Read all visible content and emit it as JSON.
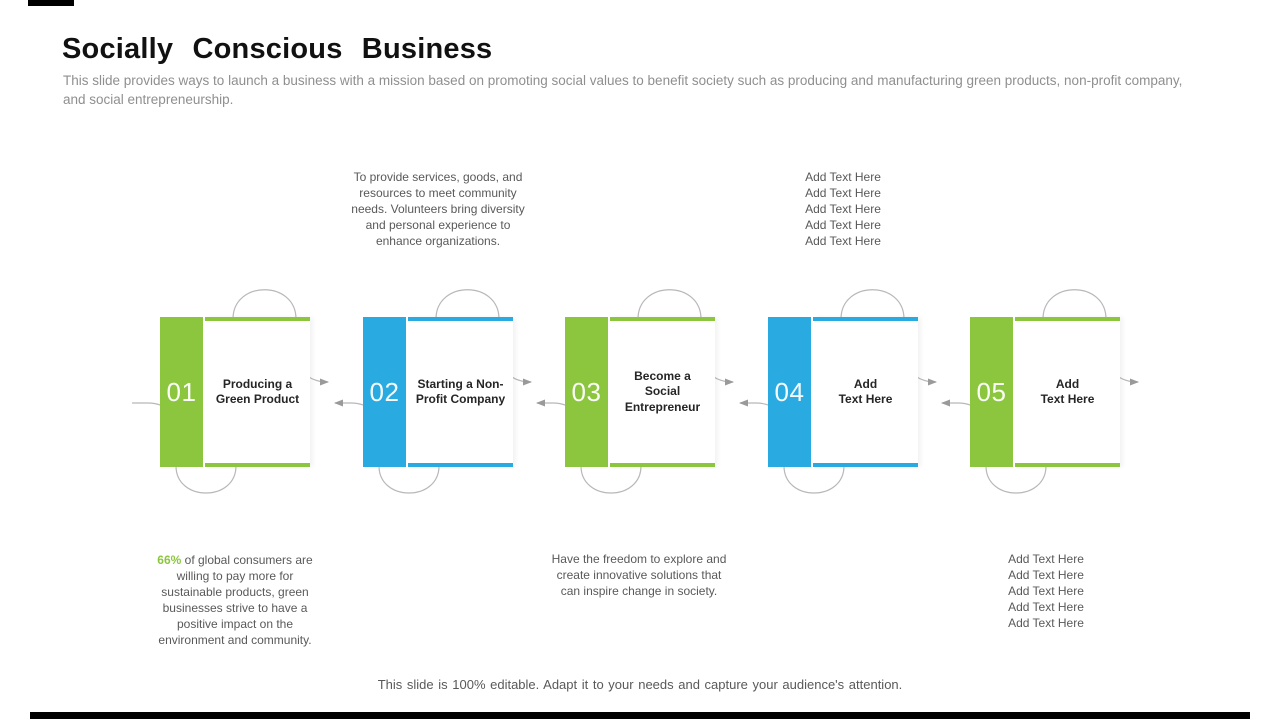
{
  "slide": {
    "title": "Socially Conscious Business",
    "subtitle": "This slide provides ways to launch a business with a mission based on promoting social values to benefit society such as producing and manufacturing green products, non-profit company, and social entrepreneurship.",
    "footer": "This slide is 100% editable. Adapt it to your needs and capture your audience's attention."
  },
  "colors": {
    "green": "#8CC63E",
    "blue": "#29ABE2",
    "connector_gray": "#b8b8b8",
    "body_text_gray": "#595959",
    "subtitle_gray": "#8f8f8f"
  },
  "steps": [
    {
      "number": "01",
      "color": "green",
      "label": "Producing a\nGreen Product"
    },
    {
      "number": "02",
      "color": "blue",
      "label": "Starting a Non-\nProfit Company"
    },
    {
      "number": "03",
      "color": "green",
      "label": "Become a\nSocial\nEntrepreneur"
    },
    {
      "number": "04",
      "color": "blue",
      "label": "Add\nText Here"
    },
    {
      "number": "05",
      "color": "green",
      "label": "Add\nText Here"
    }
  ],
  "notes": {
    "above_step2": "To provide services, goods, and\nresources to meet community\nneeds. Volunteers bring diversity\nand personal experience to\nenhance organizations.",
    "above_step4": "Add Text Here\nAdd Text Here\nAdd Text Here\nAdd Text Here\nAdd Text Here",
    "below_step1_highlight": "66%",
    "below_step1_text": " of global consumers are\nwilling to pay more for\nsustainable products, green\nbusinesses strive to have a\npositive impact on the\nenvironment and community.",
    "below_step3": "Have the freedom to explore and\ncreate innovative solutions that\ncan inspire change in society.",
    "below_step5": "Add Text Here\nAdd Text Here\nAdd Text Here\nAdd Text Here\nAdd Text Here"
  }
}
